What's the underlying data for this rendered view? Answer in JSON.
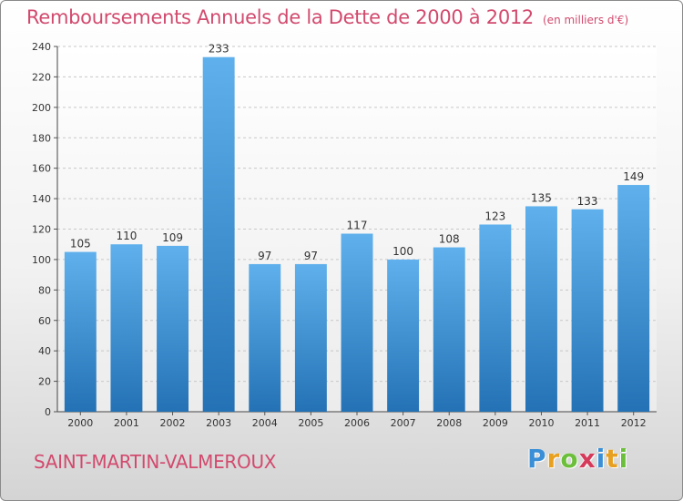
{
  "chart_data": {
    "type": "bar",
    "title": "Remboursements Annuels de la Dette de 2000 à 2012",
    "subtitle": "(en milliers d'€)",
    "categories": [
      "2000",
      "2001",
      "2002",
      "2003",
      "2004",
      "2005",
      "2006",
      "2007",
      "2008",
      "2009",
      "2010",
      "2011",
      "2012"
    ],
    "values": [
      105,
      110,
      109,
      233,
      97,
      97,
      117,
      100,
      108,
      123,
      135,
      133,
      149
    ],
    "ylim": [
      0,
      240
    ],
    "yticks": [
      0,
      20,
      40,
      60,
      80,
      100,
      120,
      140,
      160,
      180,
      200,
      220,
      240
    ],
    "grid": true,
    "bar_color": "#4a9ad8"
  },
  "place_name": "SAINT-MARTIN-VALMEROUX",
  "logo": {
    "letters": [
      "P",
      "r",
      "o",
      "x",
      "i",
      "t",
      "i"
    ],
    "colors": [
      "#3a8fd6",
      "#e8a020",
      "#6cbf3a",
      "#d63a5a",
      "#3a8fd6",
      "#e8a020",
      "#6cbf3a"
    ]
  }
}
